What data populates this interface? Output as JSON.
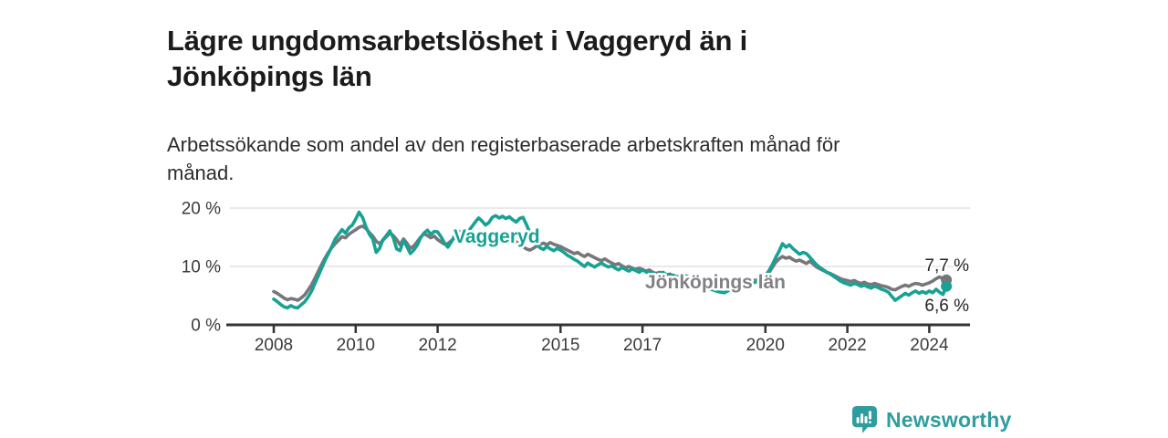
{
  "header": {
    "title": "Lägre ungdomsarbetslöshet i Vaggeryd än i Jönköpings län",
    "title_lines": [
      "Lägre ungdomsarbetslöshet i Vaggeryd än i",
      "Jönköpings län"
    ],
    "subtitle": "Arbetssökande som andel av den registerbaserade arbetskraften månad för månad.",
    "subtitle_lines": [
      "Arbetssökande som andel av den registerbaserade arbetskraften månad för",
      "månad."
    ]
  },
  "footer": {
    "brand": "Newsworthy",
    "brand_color": "#2f9d9e"
  },
  "colors": {
    "vaggeryd_teal": "#17a294",
    "jonkoping_gray": "#77777b",
    "jonkoping_label_gray": "#828286",
    "axis_line": "#333336",
    "axis_text": "#3b3b3d",
    "gridline": "#e2e2e2",
    "end_label_text": "#242426",
    "background": "#ffffff"
  },
  "chart_data": {
    "type": "line",
    "title": "Lägre ungdomsarbetslöshet i Vaggeryd än i Jönköpings län",
    "subtitle": "Arbetssökande som andel av den registerbaserade arbetskraften månad för månad.",
    "unit": "%",
    "frequency": "monthly",
    "x_start": "2008-01",
    "x_end": "2024-06",
    "xlabel": "",
    "ylabel": "",
    "ylim": [
      0,
      21
    ],
    "yticks": [
      0,
      10,
      20
    ],
    "ytick_labels": [
      "0 %",
      "10 %",
      "20 %"
    ],
    "xticks": [
      2008,
      2010,
      2012,
      2015,
      2017,
      2020,
      2022,
      2024
    ],
    "grid": "horizontal",
    "legend_position": "inline-labels",
    "series": [
      {
        "name": "Vaggeryd",
        "color": "#17a294",
        "end_value": 6.6,
        "end_label": "6,6 %",
        "values": [
          4.4,
          4.0,
          3.5,
          3.1,
          2.9,
          3.3,
          3.0,
          2.9,
          3.4,
          3.9,
          4.7,
          5.7,
          7.0,
          8.3,
          9.7,
          11.0,
          12.2,
          13.4,
          14.7,
          15.5,
          16.3,
          15.7,
          16.6,
          17.1,
          18.1,
          19.3,
          18.4,
          16.8,
          15.5,
          14.7,
          12.4,
          13.1,
          14.6,
          15.3,
          16.1,
          14.9,
          13.0,
          12.7,
          14.5,
          13.4,
          12.2,
          12.8,
          13.6,
          14.9,
          15.7,
          16.2,
          15.5,
          16.0,
          15.9,
          15.1,
          14.0,
          13.3,
          14.2,
          15.3,
          16.1,
          15.7,
          16.3,
          16.0,
          16.8,
          17.6,
          18.3,
          17.8,
          17.1,
          17.5,
          18.4,
          18.7,
          18.3,
          18.6,
          18.2,
          18.5,
          18.0,
          17.6,
          18.2,
          18.4,
          17.2,
          15.8,
          14.6,
          13.8,
          13.2,
          12.9,
          13.4,
          13.0,
          12.7,
          13.1,
          12.8,
          12.4,
          11.9,
          11.6,
          11.2,
          10.9,
          10.4,
          10.0,
          10.6,
          10.2,
          9.9,
          10.3,
          10.6,
          10.2,
          9.9,
          10.1,
          9.7,
          9.4,
          9.8,
          9.5,
          9.2,
          9.6,
          9.3,
          9.0,
          9.4,
          9.1,
          8.7,
          8.9,
          8.5,
          8.7,
          9.0,
          8.6,
          8.3,
          8.5,
          8.2,
          8.4,
          8.6,
          8.3,
          7.9,
          7.6,
          7.2,
          7.0,
          6.7,
          6.4,
          6.1,
          5.9,
          5.7,
          5.6,
          5.5,
          5.8,
          6.1,
          5.9,
          6.3,
          6.6,
          6.4,
          6.8,
          7.1,
          7.3,
          7.6,
          7.9,
          8.4,
          9.2,
          10.3,
          11.5,
          12.6,
          13.9,
          13.3,
          13.7,
          13.1,
          12.6,
          12.1,
          12.4,
          12.2,
          11.6,
          10.9,
          10.3,
          9.8,
          9.4,
          9.0,
          8.7,
          8.3,
          7.9,
          7.5,
          7.2,
          7.0,
          6.8,
          7.1,
          6.9,
          6.6,
          6.8,
          6.5,
          6.3,
          6.6,
          6.4,
          6.1,
          5.9,
          5.6,
          4.9,
          4.2,
          4.6,
          5.0,
          5.4,
          5.1,
          5.5,
          5.8,
          5.4,
          5.7,
          5.4,
          5.8,
          5.5,
          6.1,
          5.6,
          5.2,
          6.6
        ]
      },
      {
        "name": "Jönköpings län",
        "color": "#77777b",
        "end_value": 7.7,
        "end_label": "7,7 %",
        "values": [
          5.7,
          5.4,
          5.0,
          4.6,
          4.3,
          4.5,
          4.4,
          4.2,
          4.6,
          5.1,
          5.9,
          6.8,
          7.9,
          9.1,
          10.3,
          11.4,
          12.4,
          13.2,
          13.9,
          14.5,
          15.1,
          14.9,
          15.5,
          15.9,
          16.3,
          16.7,
          16.9,
          16.5,
          15.8,
          15.2,
          14.3,
          13.9,
          14.5,
          15.1,
          15.7,
          15.3,
          14.6,
          13.7,
          14.7,
          14.0,
          13.1,
          13.5,
          14.2,
          15.0,
          15.6,
          15.3,
          14.9,
          15.2,
          14.6,
          14.2,
          13.8,
          13.9,
          14.4,
          14.9,
          15.3,
          15.1,
          15.5,
          15.2,
          15.6,
          15.4,
          15.6,
          15.3,
          14.9,
          15.2,
          15.5,
          15.7,
          15.4,
          15.6,
          15.2,
          14.9,
          14.6,
          14.2,
          13.8,
          13.4,
          13.0,
          12.8,
          13.1,
          13.5,
          13.8,
          14.0,
          13.7,
          14.1,
          13.8,
          13.6,
          13.4,
          13.1,
          12.8,
          12.5,
          12.2,
          12.4,
          12.0,
          11.7,
          12.1,
          11.8,
          11.5,
          11.2,
          11.0,
          11.3,
          10.9,
          10.6,
          10.3,
          10.5,
          10.1,
          9.8,
          10.0,
          9.7,
          9.5,
          9.7,
          9.5,
          9.2,
          9.4,
          9.0,
          8.8,
          9.0,
          8.7,
          8.5,
          8.7,
          8.4,
          8.2,
          8.4,
          8.5,
          8.3,
          8.1,
          7.9,
          7.7,
          7.9,
          7.6,
          7.4,
          7.6,
          7.3,
          7.2,
          7.4,
          7.3,
          7.1,
          7.3,
          7.0,
          7.2,
          7.4,
          7.2,
          7.5,
          7.7,
          7.6,
          7.8,
          8.0,
          8.3,
          8.9,
          9.8,
          10.7,
          11.3,
          11.7,
          11.4,
          11.6,
          11.2,
          10.9,
          11.1,
          10.8,
          10.5,
          10.9,
          10.4,
          9.9,
          9.6,
          9.3,
          9.0,
          8.8,
          8.5,
          8.2,
          7.9,
          7.7,
          7.6,
          7.4,
          7.6,
          7.3,
          7.1,
          7.3,
          7.0,
          6.9,
          7.1,
          6.9,
          6.7,
          6.6,
          6.4,
          6.1,
          6.0,
          6.3,
          6.6,
          6.8,
          6.6,
          6.9,
          7.1,
          7.0,
          6.8,
          7.0,
          7.2,
          7.5,
          7.9,
          8.2,
          7.9,
          7.7
        ]
      }
    ]
  }
}
